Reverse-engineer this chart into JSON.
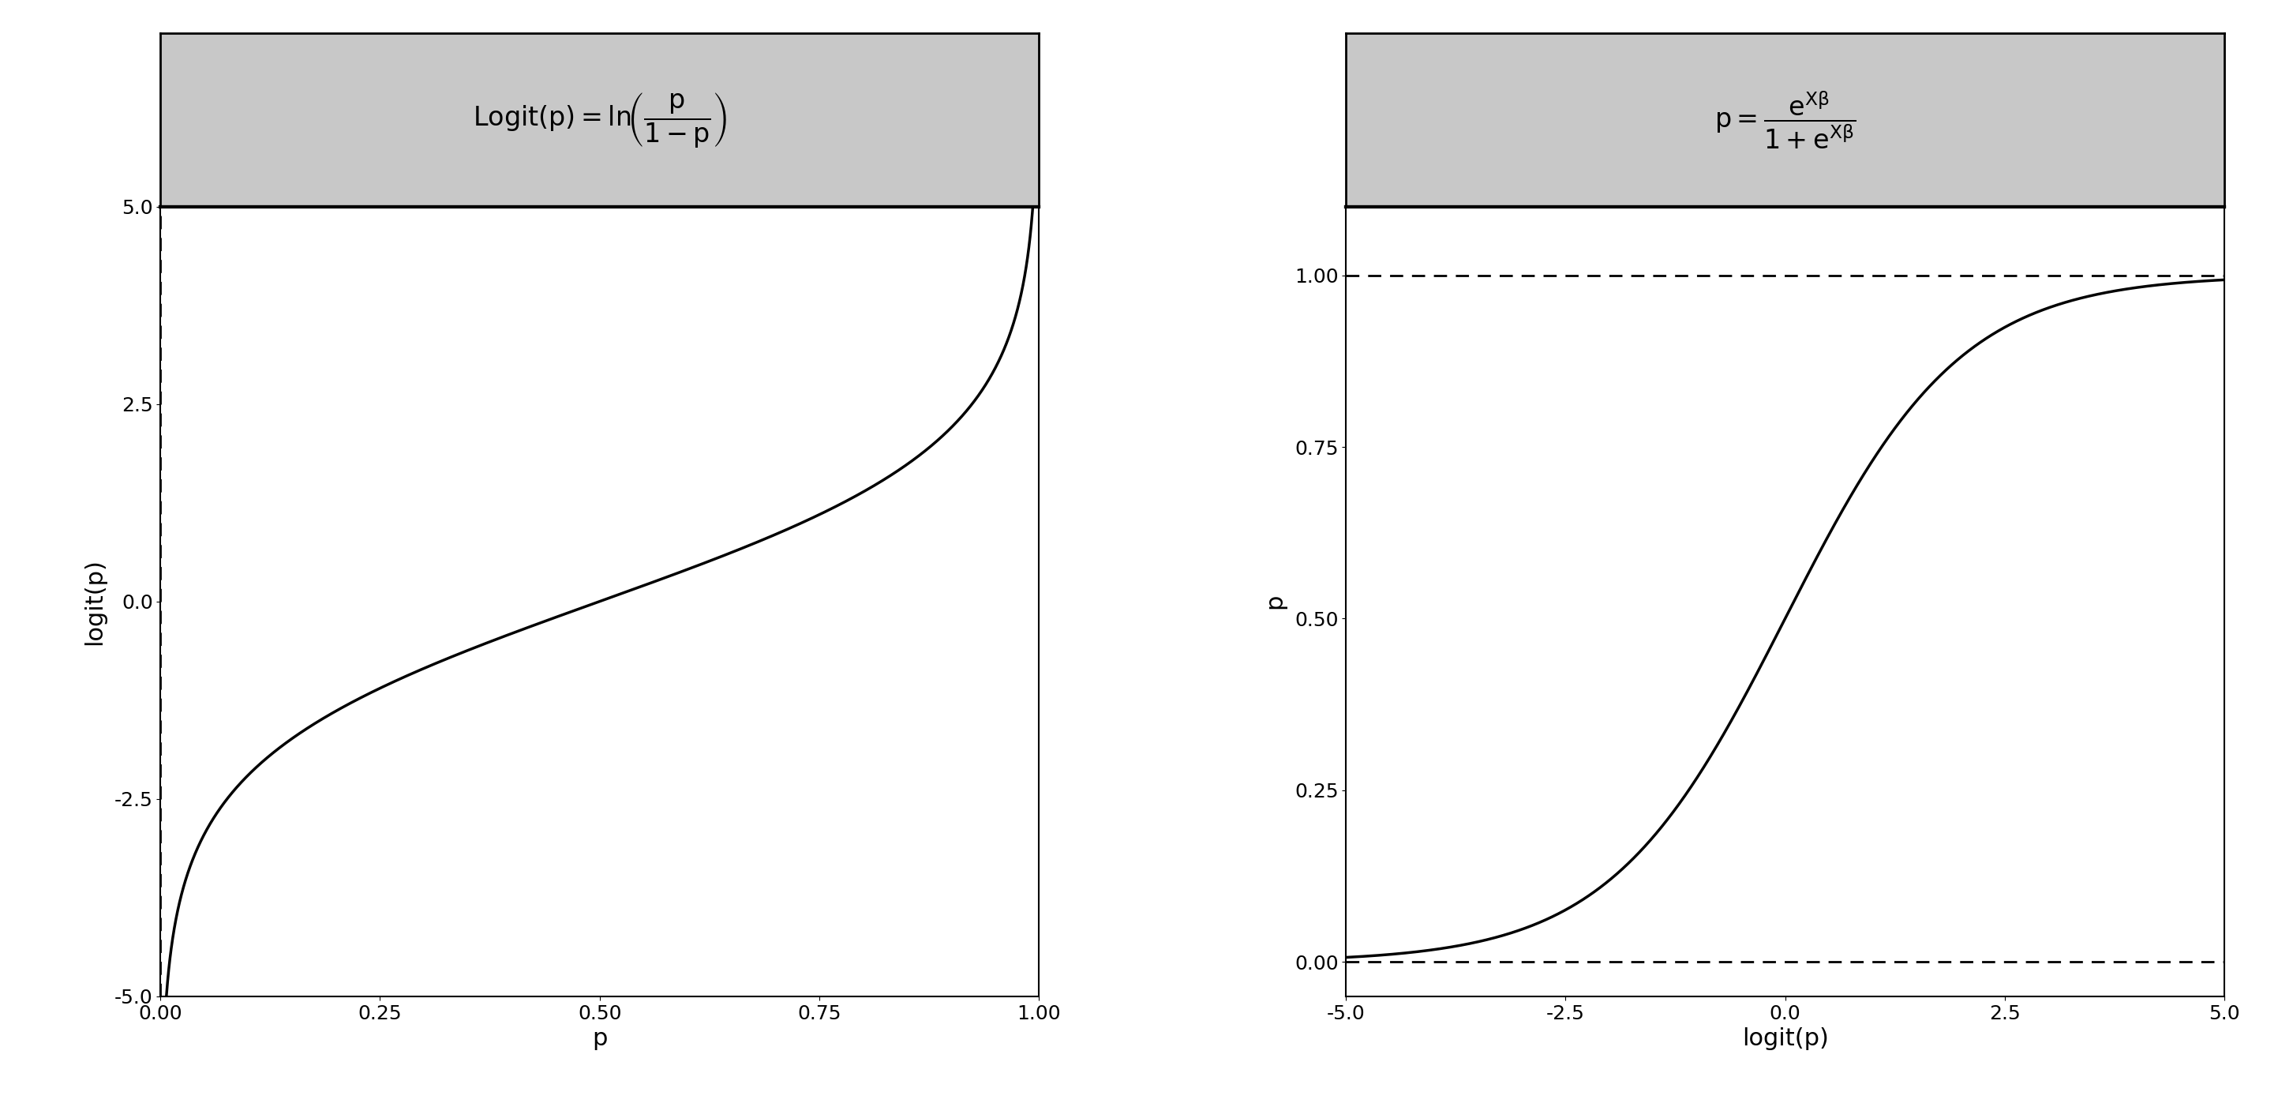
{
  "fig_width": 29.05,
  "fig_height": 14.02,
  "background_color": "#ffffff",
  "panel_bg_color": "#c8c8c8",
  "plot_bg_color": "#ffffff",
  "line_color": "#000000",
  "dashed_color": "#000000",
  "title_fontsize": 24,
  "label_fontsize": 22,
  "tick_fontsize": 18,
  "logit_xlim": [
    0.0,
    1.0
  ],
  "logit_ylim": [
    -5.0,
    5.0
  ],
  "logit_xlabel": "p",
  "logit_ylabel": "logit(p)",
  "logit_xticks": [
    0.0,
    0.25,
    0.5,
    0.75,
    1.0
  ],
  "logit_yticks": [
    -5.0,
    -2.5,
    0.0,
    2.5,
    5.0
  ],
  "logit_xticklabels": [
    "0.00",
    "0.25",
    "0.50",
    "0.75",
    "1.00"
  ],
  "logit_yticklabels": [
    "-5.0",
    "-2.5",
    "0.0",
    "2.5",
    "5.0"
  ],
  "sigmoid_xlim": [
    -5.0,
    5.0
  ],
  "sigmoid_ylim": [
    -0.05,
    1.1
  ],
  "sigmoid_xlabel": "logit(p)",
  "sigmoid_ylabel": "p",
  "sigmoid_xticks": [
    -5.0,
    -2.5,
    0.0,
    2.5,
    5.0
  ],
  "sigmoid_yticks": [
    0.0,
    0.25,
    0.5,
    0.75,
    1.0
  ],
  "sigmoid_xticklabels": [
    "-5.0",
    "-2.5",
    "0.0",
    "2.5",
    "5.0"
  ],
  "sigmoid_yticklabels": [
    "0.00",
    "0.25",
    "0.50",
    "0.75",
    "1.00"
  ]
}
